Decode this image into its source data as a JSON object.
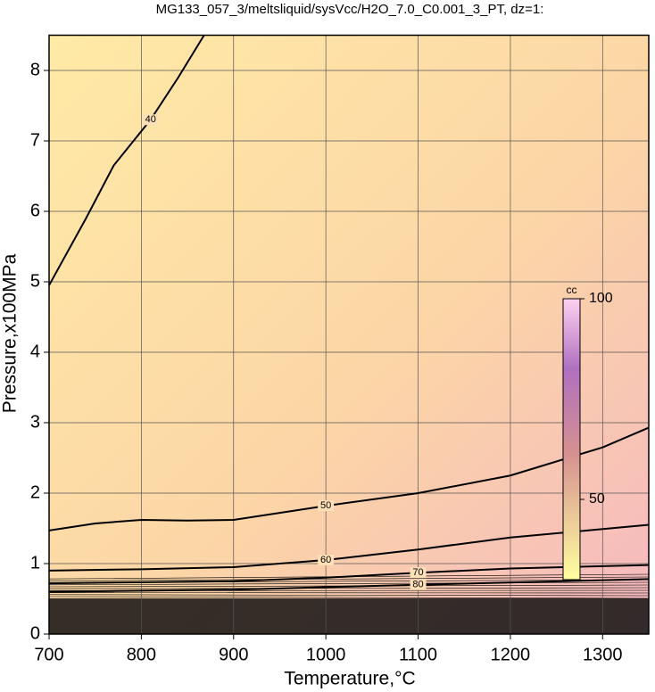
{
  "chart_data": {
    "type": "contour",
    "title": "MG133_057_3/meltsliquid/sysVcc/H2O_7.0_C0.001_3_PT, dz=1:",
    "x_label": "Temperature,°C",
    "y_label": "Pressure,x100MPa",
    "xlim": [
      700,
      1350
    ],
    "ylim": [
      0,
      8.5
    ],
    "xticks": [
      700,
      800,
      900,
      1000,
      1100,
      1200,
      1300
    ],
    "yticks": [
      0,
      1,
      2,
      3,
      4,
      5,
      6,
      7,
      8
    ],
    "grid": true,
    "contours": [
      {
        "level": 40,
        "x": [
          700,
          740,
          770,
          810,
          840,
          868
        ],
        "y": [
          4.95,
          5.9,
          6.65,
          7.3,
          7.9,
          8.5
        ]
      },
      {
        "level": 50,
        "x": [
          700,
          750,
          800,
          850,
          900,
          1000,
          1100,
          1200,
          1300,
          1350
        ],
        "y": [
          1.47,
          1.57,
          1.62,
          1.61,
          1.62,
          1.82,
          2.0,
          2.25,
          2.65,
          2.93
        ]
      },
      {
        "level": 60,
        "x": [
          700,
          800,
          900,
          1000,
          1100,
          1200,
          1350
        ],
        "y": [
          0.9,
          0.92,
          0.95,
          1.05,
          1.2,
          1.37,
          1.55
        ]
      },
      {
        "level": 70,
        "x": [
          700,
          900,
          1000,
          1100,
          1200,
          1350
        ],
        "y": [
          0.72,
          0.75,
          0.8,
          0.87,
          0.93,
          0.98
        ]
      },
      {
        "level": 80,
        "x": [
          700,
          900,
          1100,
          1350
        ],
        "y": [
          0.6,
          0.63,
          0.7,
          0.78
        ]
      }
    ],
    "colorbar": {
      "label": "cc",
      "clim": [
        30,
        100
      ],
      "ticks": [
        100,
        50
      ]
    }
  }
}
